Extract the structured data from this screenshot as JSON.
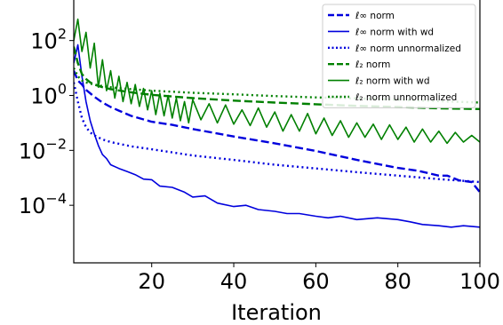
{
  "chart_data": {
    "type": "line",
    "title": "",
    "xlabel": "Iteration",
    "ylabel": "",
    "xlim": [
      1,
      100
    ],
    "ylim": [
      8e-07,
      3000
    ],
    "yscale": "log",
    "grid": false,
    "legend_position": "top-right",
    "x_ticks": [
      20,
      40,
      60,
      80,
      100
    ],
    "x_tick_labels": [
      "20",
      "40",
      "60",
      "80",
      "100"
    ],
    "y_ticks": [
      0.0001,
      0.01,
      1,
      100
    ],
    "y_tick_labels": [
      {
        "base": "10",
        "exp": "−4"
      },
      {
        "base": "10",
        "exp": "−2"
      },
      {
        "base": "10",
        "exp": "0"
      },
      {
        "base": "10",
        "exp": "2"
      }
    ],
    "series": [
      {
        "name": "ℓ∞ norm",
        "color": "#0000dd",
        "style": "dashed",
        "x": [
          1,
          2,
          3,
          4,
          5,
          6,
          8,
          10,
          12,
          15,
          20,
          25,
          30,
          40,
          50,
          60,
          70,
          80,
          85,
          90,
          92,
          95,
          98,
          100
        ],
        "y": [
          8,
          3.5,
          2.5,
          1.6,
          1.2,
          0.9,
          0.55,
          0.38,
          0.28,
          0.18,
          0.11,
          0.085,
          0.06,
          0.032,
          0.018,
          0.0095,
          0.0045,
          0.0023,
          0.0018,
          0.0012,
          0.0012,
          0.0008,
          0.0007,
          0.0003
        ]
      },
      {
        "name": "ℓ∞ norm with wd",
        "color": "#0000dd",
        "style": "solid",
        "x": [
          1,
          2,
          3,
          4,
          5,
          6,
          7,
          8,
          9,
          10,
          12,
          14,
          16,
          18,
          20,
          22,
          25,
          28,
          30,
          33,
          36,
          40,
          43,
          46,
          50,
          53,
          56,
          60,
          63,
          66,
          70,
          75,
          80,
          83,
          86,
          90,
          93,
          96,
          100
        ],
        "y": [
          15,
          70,
          5,
          0.6,
          0.12,
          0.04,
          0.015,
          0.007,
          0.005,
          0.003,
          0.0022,
          0.0017,
          0.0013,
          0.0009,
          0.00085,
          0.0005,
          0.00045,
          0.0003,
          0.0002,
          0.00022,
          0.00012,
          9e-05,
          0.0001,
          7e-05,
          6e-05,
          5e-05,
          5e-05,
          4e-05,
          3.5e-05,
          4e-05,
          3e-05,
          3.5e-05,
          3e-05,
          2.5e-05,
          2e-05,
          1.8e-05,
          1.6e-05,
          1.8e-05,
          1.6e-05
        ]
      },
      {
        "name": "ℓ∞ norm unnormalized",
        "color": "#0000dd",
        "style": "dotted",
        "x": [
          1,
          2,
          3,
          4,
          5,
          6,
          8,
          10,
          15,
          20,
          30,
          40,
          50,
          60,
          70,
          80,
          90,
          100
        ],
        "y": [
          3,
          0.6,
          0.15,
          0.07,
          0.045,
          0.035,
          0.025,
          0.02,
          0.014,
          0.011,
          0.0065,
          0.0045,
          0.003,
          0.0022,
          0.0016,
          0.0012,
          0.0009,
          0.0007
        ]
      },
      {
        "name": "ℓ₂ norm",
        "color": "#008000",
        "style": "dashed",
        "x": [
          1,
          2,
          3,
          4,
          5,
          6,
          8,
          10,
          15,
          20,
          30,
          40,
          50,
          60,
          70,
          80,
          90,
          100
        ],
        "y": [
          60,
          15,
          6,
          4,
          3,
          2.5,
          2,
          1.7,
          1.3,
          1.05,
          0.8,
          0.65,
          0.55,
          0.48,
          0.42,
          0.38,
          0.34,
          0.32
        ]
      },
      {
        "name": "ℓ₂ norm with wd",
        "color": "#008000",
        "style": "solid",
        "x": [
          1,
          2,
          3,
          4,
          5,
          6,
          7,
          8,
          9,
          10,
          11,
          12,
          13,
          14,
          15,
          16,
          17,
          18,
          19,
          20,
          21,
          22,
          23,
          24,
          25,
          26,
          27,
          28,
          29,
          30,
          32,
          34,
          36,
          38,
          40,
          42,
          44,
          46,
          48,
          50,
          52,
          54,
          56,
          58,
          60,
          62,
          64,
          66,
          68,
          70,
          72,
          74,
          76,
          78,
          80,
          82,
          84,
          86,
          88,
          90,
          92,
          94,
          96,
          98,
          100
        ],
        "y": [
          100,
          600,
          40,
          200,
          10,
          80,
          2,
          20,
          1.5,
          8,
          0.8,
          5,
          0.6,
          3,
          0.5,
          2.5,
          0.4,
          1.8,
          0.3,
          1.5,
          0.2,
          1.2,
          0.18,
          1,
          0.15,
          0.8,
          0.12,
          0.6,
          0.1,
          0.7,
          0.13,
          0.5,
          0.1,
          0.45,
          0.09,
          0.3,
          0.08,
          0.35,
          0.07,
          0.25,
          0.05,
          0.2,
          0.05,
          0.22,
          0.04,
          0.15,
          0.035,
          0.12,
          0.03,
          0.1,
          0.03,
          0.09,
          0.025,
          0.085,
          0.025,
          0.07,
          0.02,
          0.06,
          0.02,
          0.05,
          0.018,
          0.045,
          0.02,
          0.035,
          0.02
        ]
      },
      {
        "name": "ℓ₂ norm unnormalized",
        "color": "#008000",
        "style": "dotted",
        "x": [
          1,
          2,
          3,
          4,
          5,
          6,
          8,
          10,
          15,
          20,
          30,
          40,
          50,
          60,
          70,
          80,
          90,
          100
        ],
        "y": [
          10,
          5,
          3.5,
          3,
          2.7,
          2.5,
          2.2,
          2,
          1.7,
          1.5,
          1.25,
          1.1,
          0.95,
          0.85,
          0.78,
          0.7,
          0.62,
          0.55
        ]
      }
    ]
  }
}
